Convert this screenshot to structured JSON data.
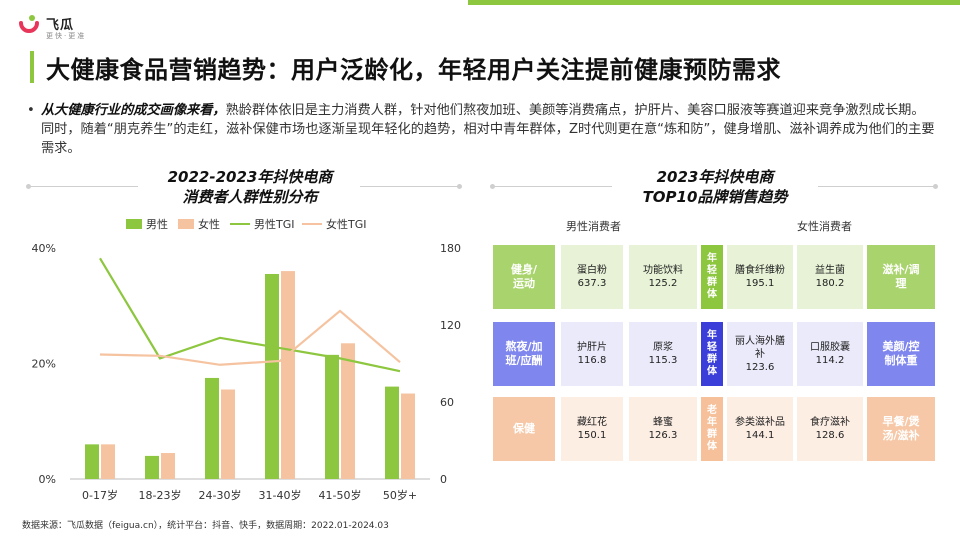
{
  "header": {
    "logo_name": "飞瓜",
    "logo_sub": "更快·更准",
    "title": "大健康食品营销趋势：用户泛龄化，年轻用户关注提前健康预防需求"
  },
  "bullet": {
    "lead": "从大健康行业的成交画像来看，",
    "body": "熟龄群体依旧是主力消费人群，针对他们熬夜加班、美颜等消费痛点，护肝片、美容口服液等赛道迎来竞争激烈成长期。同时，随着“朋克养生”的走红，滋补保健市场也逐渐呈现年轻化的趋势，相对中青年群体，Z时代则更在意“炼和防”，健身增肌、滋补调养成为他们的主要需求。"
  },
  "left_section": {
    "title_line1": "2022-2023年抖快电商",
    "title_line2": "消费者人群性别分布"
  },
  "right_section": {
    "title_line1": "2023年抖快电商",
    "title_line2": "TOP10品牌销售趋势"
  },
  "colors": {
    "accent": "#8dc63f",
    "male_bar": "#8dc63f",
    "female_bar": "#f5c3a0",
    "male_line": "#8dc63f",
    "female_line": "#f5c3a0",
    "green_row": "#e7f2d6",
    "purple_row": "#eaeafb",
    "peach_row": "#fdeee4",
    "green_cat": "#a9d36c",
    "purple_cat": "#7f86ee",
    "peach_cat": "#f6c8a7",
    "mid_green": "#8dc63f",
    "mid_blue": "#3b3ed8",
    "mid_peach": "#f6c09a"
  },
  "chart_data": {
    "type": "bar",
    "categories": [
      "0-17岁",
      "18-23岁",
      "24-30岁",
      "31-40岁",
      "41-50岁",
      "50岁+"
    ],
    "series": [
      {
        "name": "男性",
        "type": "bar",
        "axis": "left",
        "values": [
          6,
          4,
          17.5,
          35.5,
          21.5,
          16
        ]
      },
      {
        "name": "女性",
        "type": "bar",
        "axis": "left",
        "values": [
          6,
          4.5,
          15.5,
          36,
          23.5,
          14.8
        ]
      },
      {
        "name": "男性TGI",
        "type": "line",
        "axis": "right",
        "values": [
          172,
          94,
          110,
          102,
          94,
          84
        ]
      },
      {
        "name": "女性TGI",
        "type": "line",
        "axis": "right",
        "values": [
          97,
          96,
          89,
          92,
          131,
          91
        ]
      }
    ],
    "y_left": {
      "min": 0,
      "max": 40,
      "ticks": [
        "0%",
        "20%",
        "40%"
      ],
      "tick_values": [
        0,
        20,
        40
      ]
    },
    "y_right": {
      "min": 0,
      "max": 180,
      "ticks": [
        "0",
        "60",
        "120",
        "180"
      ],
      "tick_values": [
        0,
        60,
        120,
        180
      ]
    },
    "legend_position": "top",
    "grid": false
  },
  "matrix": {
    "male_header": "男性消费者",
    "female_header": "女性消费者",
    "rows": [
      {
        "theme": "green",
        "left_cat": "健身/\n运动",
        "right_cat": "滋补/调\n理",
        "mid": "年\n轻\n群\n体",
        "items": [
          {
            "name": "蛋白粉",
            "value": "637.3"
          },
          {
            "name": "功能饮料",
            "value": "125.2"
          },
          {
            "name": "膳食纤维粉",
            "value": "195.1"
          },
          {
            "name": "益生菌",
            "value": "180.2"
          }
        ]
      },
      {
        "theme": "purple",
        "left_cat": "熬夜/加\n班/应酬",
        "right_cat": "美颜/控\n制体重",
        "mid": "年\n轻\n群\n体",
        "items": [
          {
            "name": "护肝片",
            "value": "116.8"
          },
          {
            "name": "原浆",
            "value": "115.3"
          },
          {
            "name": "丽人海外膳\n补",
            "value": "123.6"
          },
          {
            "name": "口服胶囊",
            "value": "114.2"
          }
        ]
      },
      {
        "theme": "peach",
        "left_cat": "保健",
        "right_cat": "早餐/煲\n汤/滋补",
        "mid": "老\n年\n群\n体",
        "items": [
          {
            "name": "藏红花",
            "value": "150.1"
          },
          {
            "name": "蜂蜜",
            "value": "126.3"
          },
          {
            "name": "参类滋补品",
            "value": "144.1"
          },
          {
            "name": "食疗滋补",
            "value": "128.6"
          }
        ]
      }
    ]
  },
  "footer": "数据来源：飞瓜数据（feigua.cn），统计平台：抖音、快手，数据周期：2022.01-2024.03"
}
